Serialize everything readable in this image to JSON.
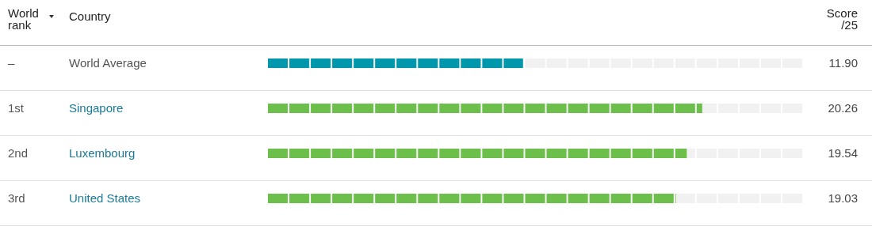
{
  "chart_data": {
    "type": "bar",
    "orientation": "horizontal",
    "categories": [
      "World Average",
      "Singapore",
      "Luxembourg",
      "United States"
    ],
    "values": [
      11.9,
      20.26,
      19.54,
      19.03
    ],
    "colors": [
      "#0096ac",
      "#6cbf4a",
      "#6cbf4a",
      "#6cbf4a"
    ],
    "value_labels": [
      "11.90",
      "20.26",
      "19.54",
      "19.03"
    ],
    "xlim": [
      0,
      25
    ],
    "xlabel": "Score /25",
    "ylabel": "Country",
    "annotations": [
      "World rank",
      "–",
      "1st",
      "2nd",
      "3rd"
    ]
  }
}
